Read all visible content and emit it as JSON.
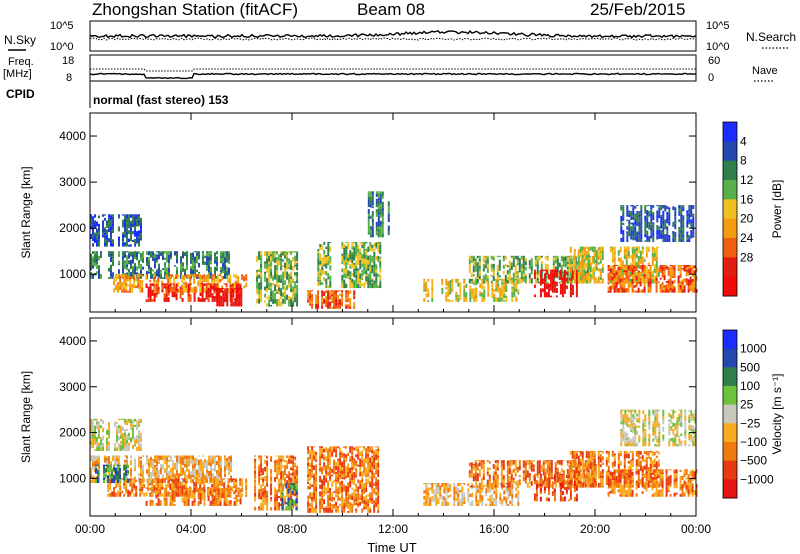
{
  "header": {
    "station": "Zhongshan Station (fitACF)",
    "beam": "Beam 08",
    "date": "25/Feb/2015"
  },
  "summary": {
    "nsky_label": "N.Sky",
    "nsky_ticks": [
      "10^5",
      "10^0"
    ],
    "nsearch_label": "N.Search",
    "nsearch_ticks": [
      "10^5",
      "10^0"
    ],
    "freq_label": "Freq.",
    "freq_unit": "[MHz]",
    "freq_ticks": [
      "18",
      "8"
    ],
    "nave_label": "Nave",
    "nave_ticks": [
      "60",
      "0"
    ],
    "cpid_label": "CPID",
    "cpid_text": "normal (fast stereo) 153"
  },
  "chart_data": [
    {
      "type": "heatmap",
      "title": "",
      "xlabel": "Time UT",
      "ylabel": "Slant Range [km]",
      "x_ticks": [
        "00:00",
        "04:00",
        "08:00",
        "12:00",
        "16:00",
        "20:00",
        "00:00"
      ],
      "x_range_hours": [
        0,
        24
      ],
      "ylim": [
        180,
        4500
      ],
      "y_ticks": [
        1000,
        2000,
        3000,
        4000
      ],
      "colorbar": {
        "label": "Power [dB]",
        "ticks": [
          "4",
          "8",
          "12",
          "16",
          "20",
          "24",
          "28"
        ],
        "colors": [
          "#1a2cff",
          "#2548b0",
          "#2f7f4c",
          "#58b04a",
          "#f0c020",
          "#f39c10",
          "#f06010",
          "#e41b10",
          "#f20a0a"
        ]
      },
      "regions": [
        {
          "t0": 0.0,
          "t1": 5.6,
          "r0": 900,
          "r1": 1500,
          "level": 2
        },
        {
          "t0": 0.6,
          "t1": 6.2,
          "r0": 600,
          "r1": 1000,
          "level": 5
        },
        {
          "t0": 2.2,
          "t1": 6.0,
          "r0": 400,
          "r1": 800,
          "level": 7
        },
        {
          "t0": 5.0,
          "t1": 6.0,
          "r0": 300,
          "r1": 700,
          "level": 8
        },
        {
          "t0": 0.0,
          "t1": 2.0,
          "r0": 1600,
          "r1": 2300,
          "level": 1
        },
        {
          "t0": 6.5,
          "t1": 8.2,
          "r0": 300,
          "r1": 1500,
          "level": 3
        },
        {
          "t0": 8.6,
          "t1": 10.5,
          "r0": 250,
          "r1": 650,
          "level": 6
        },
        {
          "t0": 9.0,
          "t1": 11.5,
          "r0": 700,
          "r1": 1700,
          "level": 3
        },
        {
          "t0": 11.0,
          "t1": 11.8,
          "r0": 1800,
          "r1": 2800,
          "level": 2
        },
        {
          "t0": 13.2,
          "t1": 17.0,
          "r0": 400,
          "r1": 900,
          "level": 4
        },
        {
          "t0": 15.0,
          "t1": 20.0,
          "r0": 800,
          "r1": 1400,
          "level": 3
        },
        {
          "t0": 17.5,
          "t1": 19.3,
          "r0": 500,
          "r1": 1100,
          "level": 8
        },
        {
          "t0": 19.0,
          "t1": 22.5,
          "r0": 800,
          "r1": 1600,
          "level": 4
        },
        {
          "t0": 21.0,
          "t1": 24.0,
          "r0": 1700,
          "r1": 2500,
          "level": 1
        },
        {
          "t0": 20.5,
          "t1": 24.0,
          "r0": 600,
          "r1": 1200,
          "level": 6
        }
      ]
    },
    {
      "type": "heatmap",
      "title": "",
      "xlabel": "Time UT",
      "ylabel": "Slant Range [km]",
      "x_ticks": [
        "00:00",
        "04:00",
        "08:00",
        "12:00",
        "16:00",
        "20:00",
        "00:00"
      ],
      "x_range_hours": [
        0,
        24
      ],
      "ylim": [
        180,
        4500
      ],
      "y_ticks": [
        1000,
        2000,
        3000,
        4000
      ],
      "colorbar": {
        "label": "Velocity [m s⁻¹]",
        "ticks": [
          "1000",
          "500",
          "100",
          "25",
          "−25",
          "−100",
          "−500",
          "−1000"
        ],
        "colors": [
          "#1a2cff",
          "#2548b0",
          "#2f7f4c",
          "#6cc23c",
          "#c8c8bd",
          "#f8ab1e",
          "#f07a10",
          "#e83a10",
          "#e51515"
        ]
      },
      "regions": [
        {
          "t0": 0.0,
          "t1": 5.6,
          "r0": 900,
          "r1": 1500,
          "level": 5
        },
        {
          "t0": 0.6,
          "t1": 6.2,
          "r0": 600,
          "r1": 1000,
          "level": 6
        },
        {
          "t0": 2.2,
          "t1": 6.0,
          "r0": 400,
          "r1": 800,
          "level": 6
        },
        {
          "t0": 0.0,
          "t1": 2.0,
          "r0": 1600,
          "r1": 2300,
          "level": 4
        },
        {
          "t0": 0.2,
          "t1": 1.5,
          "r0": 900,
          "r1": 1300,
          "level": 2
        },
        {
          "t0": 6.5,
          "t1": 8.2,
          "r0": 300,
          "r1": 1500,
          "level": 6
        },
        {
          "t0": 7.5,
          "t1": 8.2,
          "r0": 300,
          "r1": 900,
          "level": 2
        },
        {
          "t0": 8.6,
          "t1": 11.5,
          "r0": 250,
          "r1": 1700,
          "level": 6
        },
        {
          "t0": 13.2,
          "t1": 17.0,
          "r0": 400,
          "r1": 900,
          "level": 5
        },
        {
          "t0": 15.0,
          "t1": 20.0,
          "r0": 800,
          "r1": 1400,
          "level": 6
        },
        {
          "t0": 17.5,
          "t1": 19.3,
          "r0": 500,
          "r1": 1100,
          "level": 7
        },
        {
          "t0": 19.0,
          "t1": 22.5,
          "r0": 800,
          "r1": 1600,
          "level": 6
        },
        {
          "t0": 21.0,
          "t1": 24.0,
          "r0": 1700,
          "r1": 2500,
          "level": 4
        },
        {
          "t0": 20.5,
          "t1": 24.0,
          "r0": 600,
          "r1": 1200,
          "level": 6
        }
      ]
    }
  ]
}
